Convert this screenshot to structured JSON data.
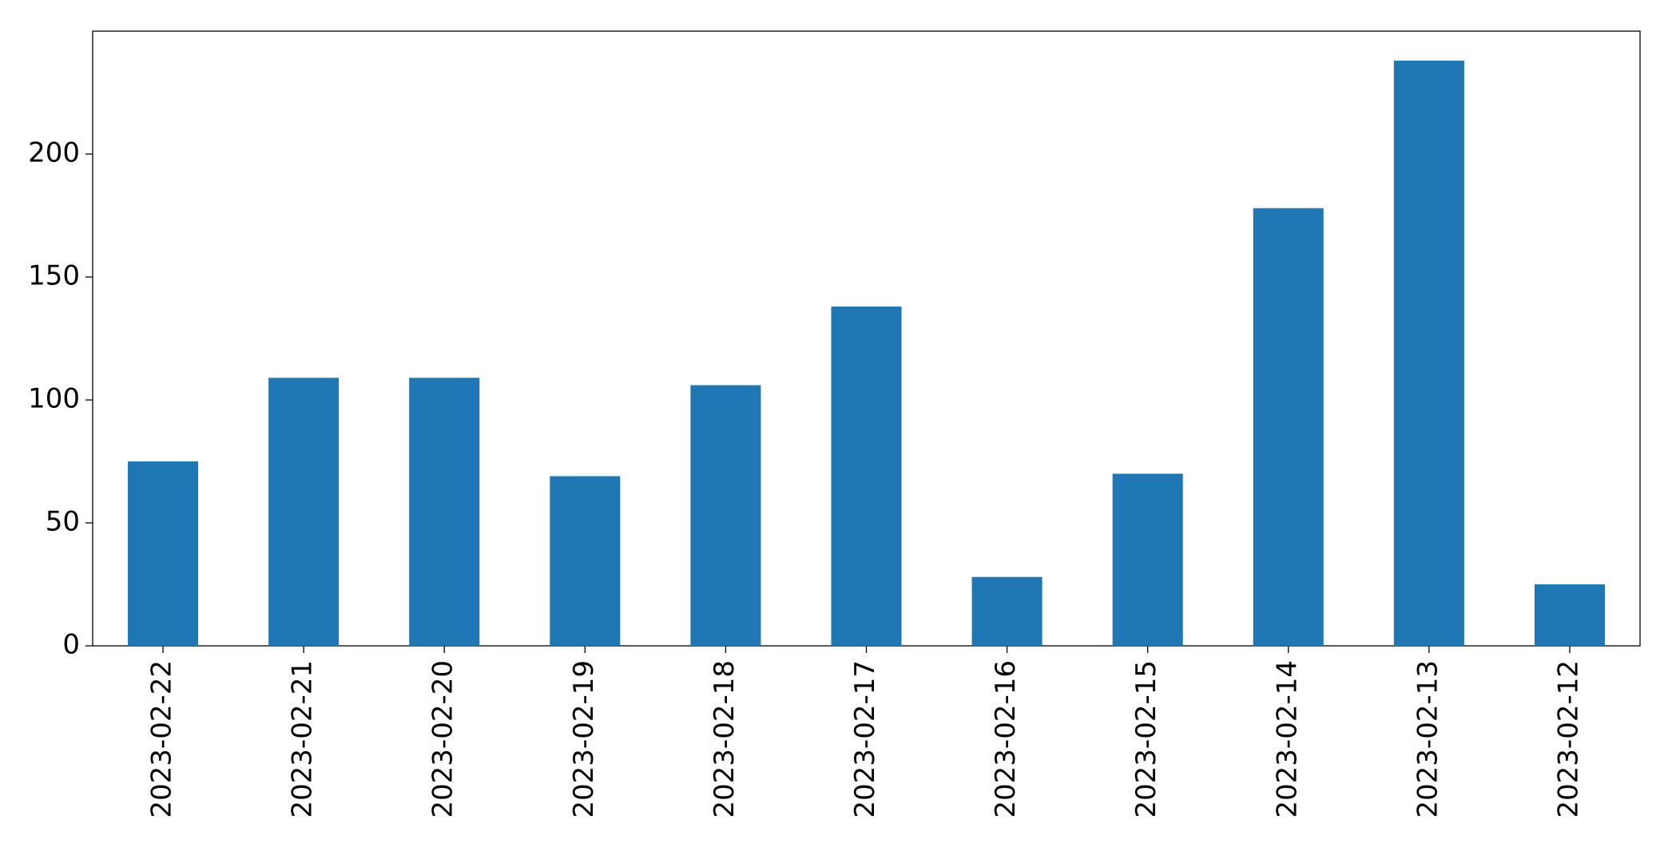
{
  "chart_data": {
    "type": "bar",
    "categories": [
      "2023-02-22",
      "2023-02-21",
      "2023-02-20",
      "2023-02-19",
      "2023-02-18",
      "2023-02-17",
      "2023-02-16",
      "2023-02-15",
      "2023-02-14",
      "2023-02-13",
      "2023-02-12"
    ],
    "values": [
      75,
      109,
      109,
      69,
      106,
      138,
      28,
      70,
      178,
      238,
      25
    ],
    "color": "#1f77b4",
    "ylim": [
      0,
      250
    ],
    "yticks": [
      0,
      50,
      100,
      150,
      200
    ],
    "grid": false
  }
}
